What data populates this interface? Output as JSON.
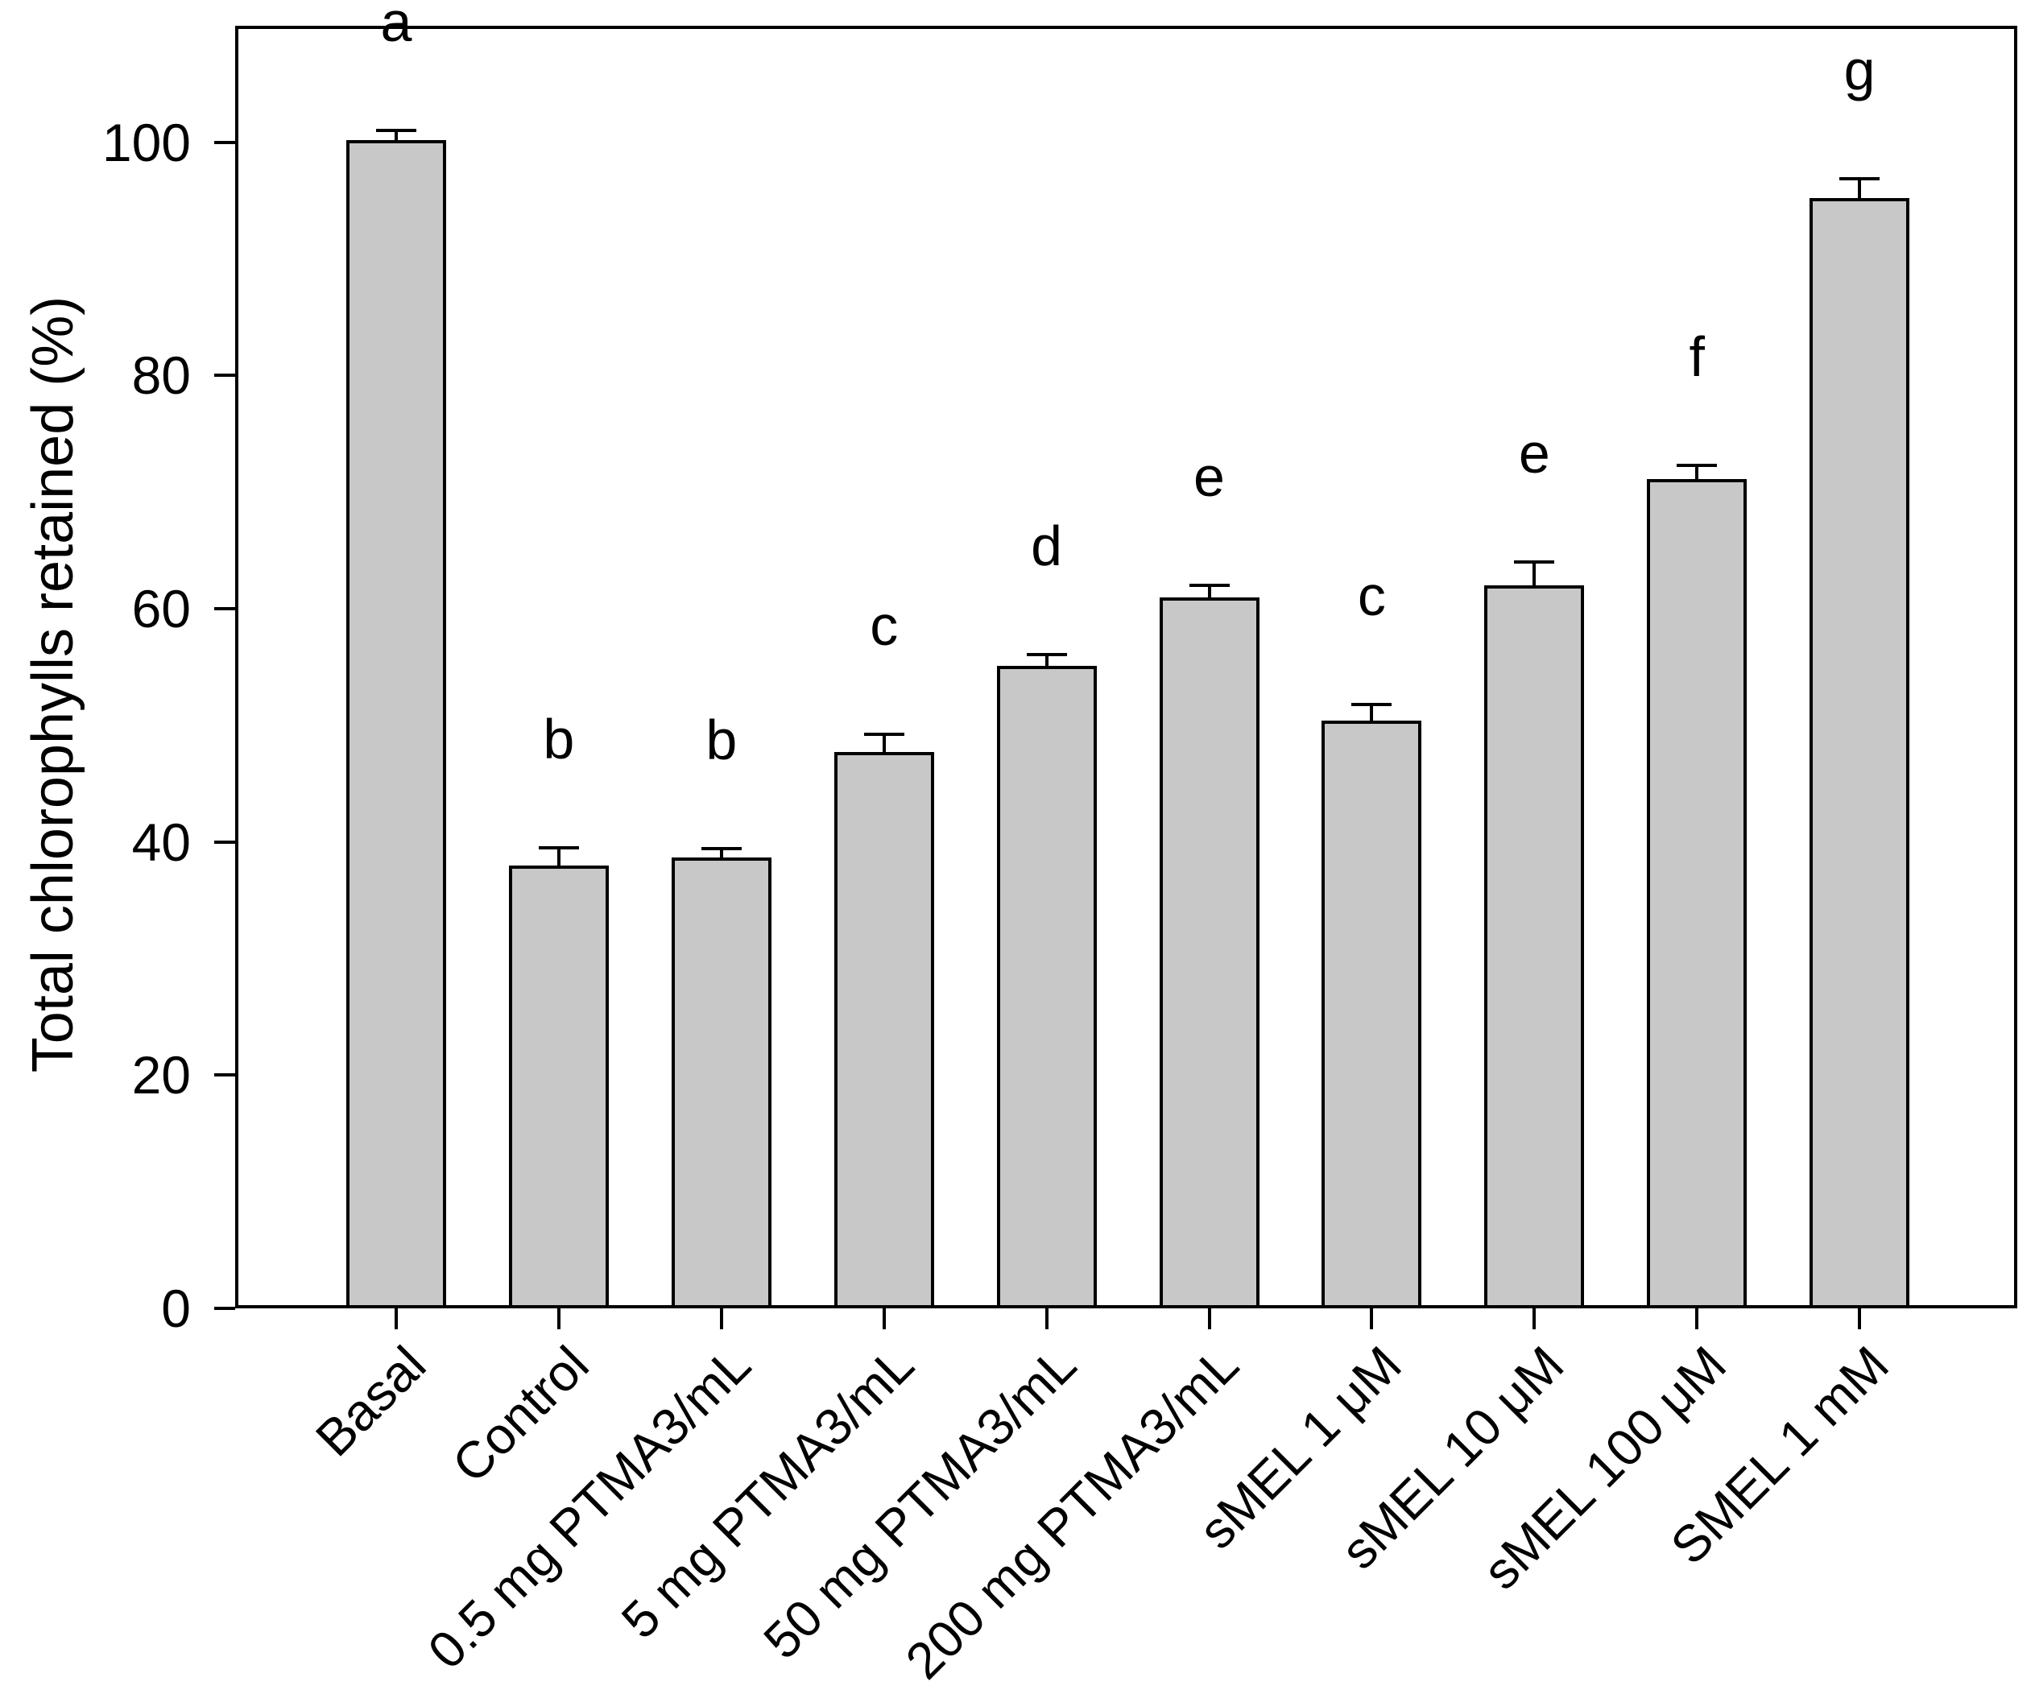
{
  "chart_data": {
    "type": "bar",
    "title": "",
    "xlabel": "",
    "ylabel": "Total chlorophylls retained (%)",
    "ylim": [
      0,
      110
    ],
    "yticks": [
      0,
      20,
      40,
      60,
      80,
      100
    ],
    "grid": false,
    "legend": "none",
    "background_color": "#ffffff",
    "bar_fill_color": "#c8c8c8",
    "bar_edge_color": "#000000",
    "axis_color": "#000000",
    "categories": [
      "Basal",
      "Control",
      "0.5 mg PTMA3/mL",
      "5 mg PTMA3/mL",
      "50 mg PTMA3/mL",
      "200 mg PTMA3/mL",
      "sMEL 1 μM",
      "sMEL 10 μM",
      "sMEL 100 μM",
      "SMEL 1 mM"
    ],
    "values": [
      100.2,
      38.0,
      38.7,
      47.7,
      55.1,
      61.0,
      50.4,
      62.0,
      71.1,
      95.2
    ],
    "errors_upper": [
      0.8,
      1.5,
      0.7,
      1.5,
      1.0,
      1.0,
      1.4,
      2.0,
      1.2,
      1.7
    ],
    "sig_letters": [
      "a",
      "b",
      "b",
      "c",
      "d",
      "e",
      "c",
      "e",
      "f",
      "g"
    ]
  }
}
